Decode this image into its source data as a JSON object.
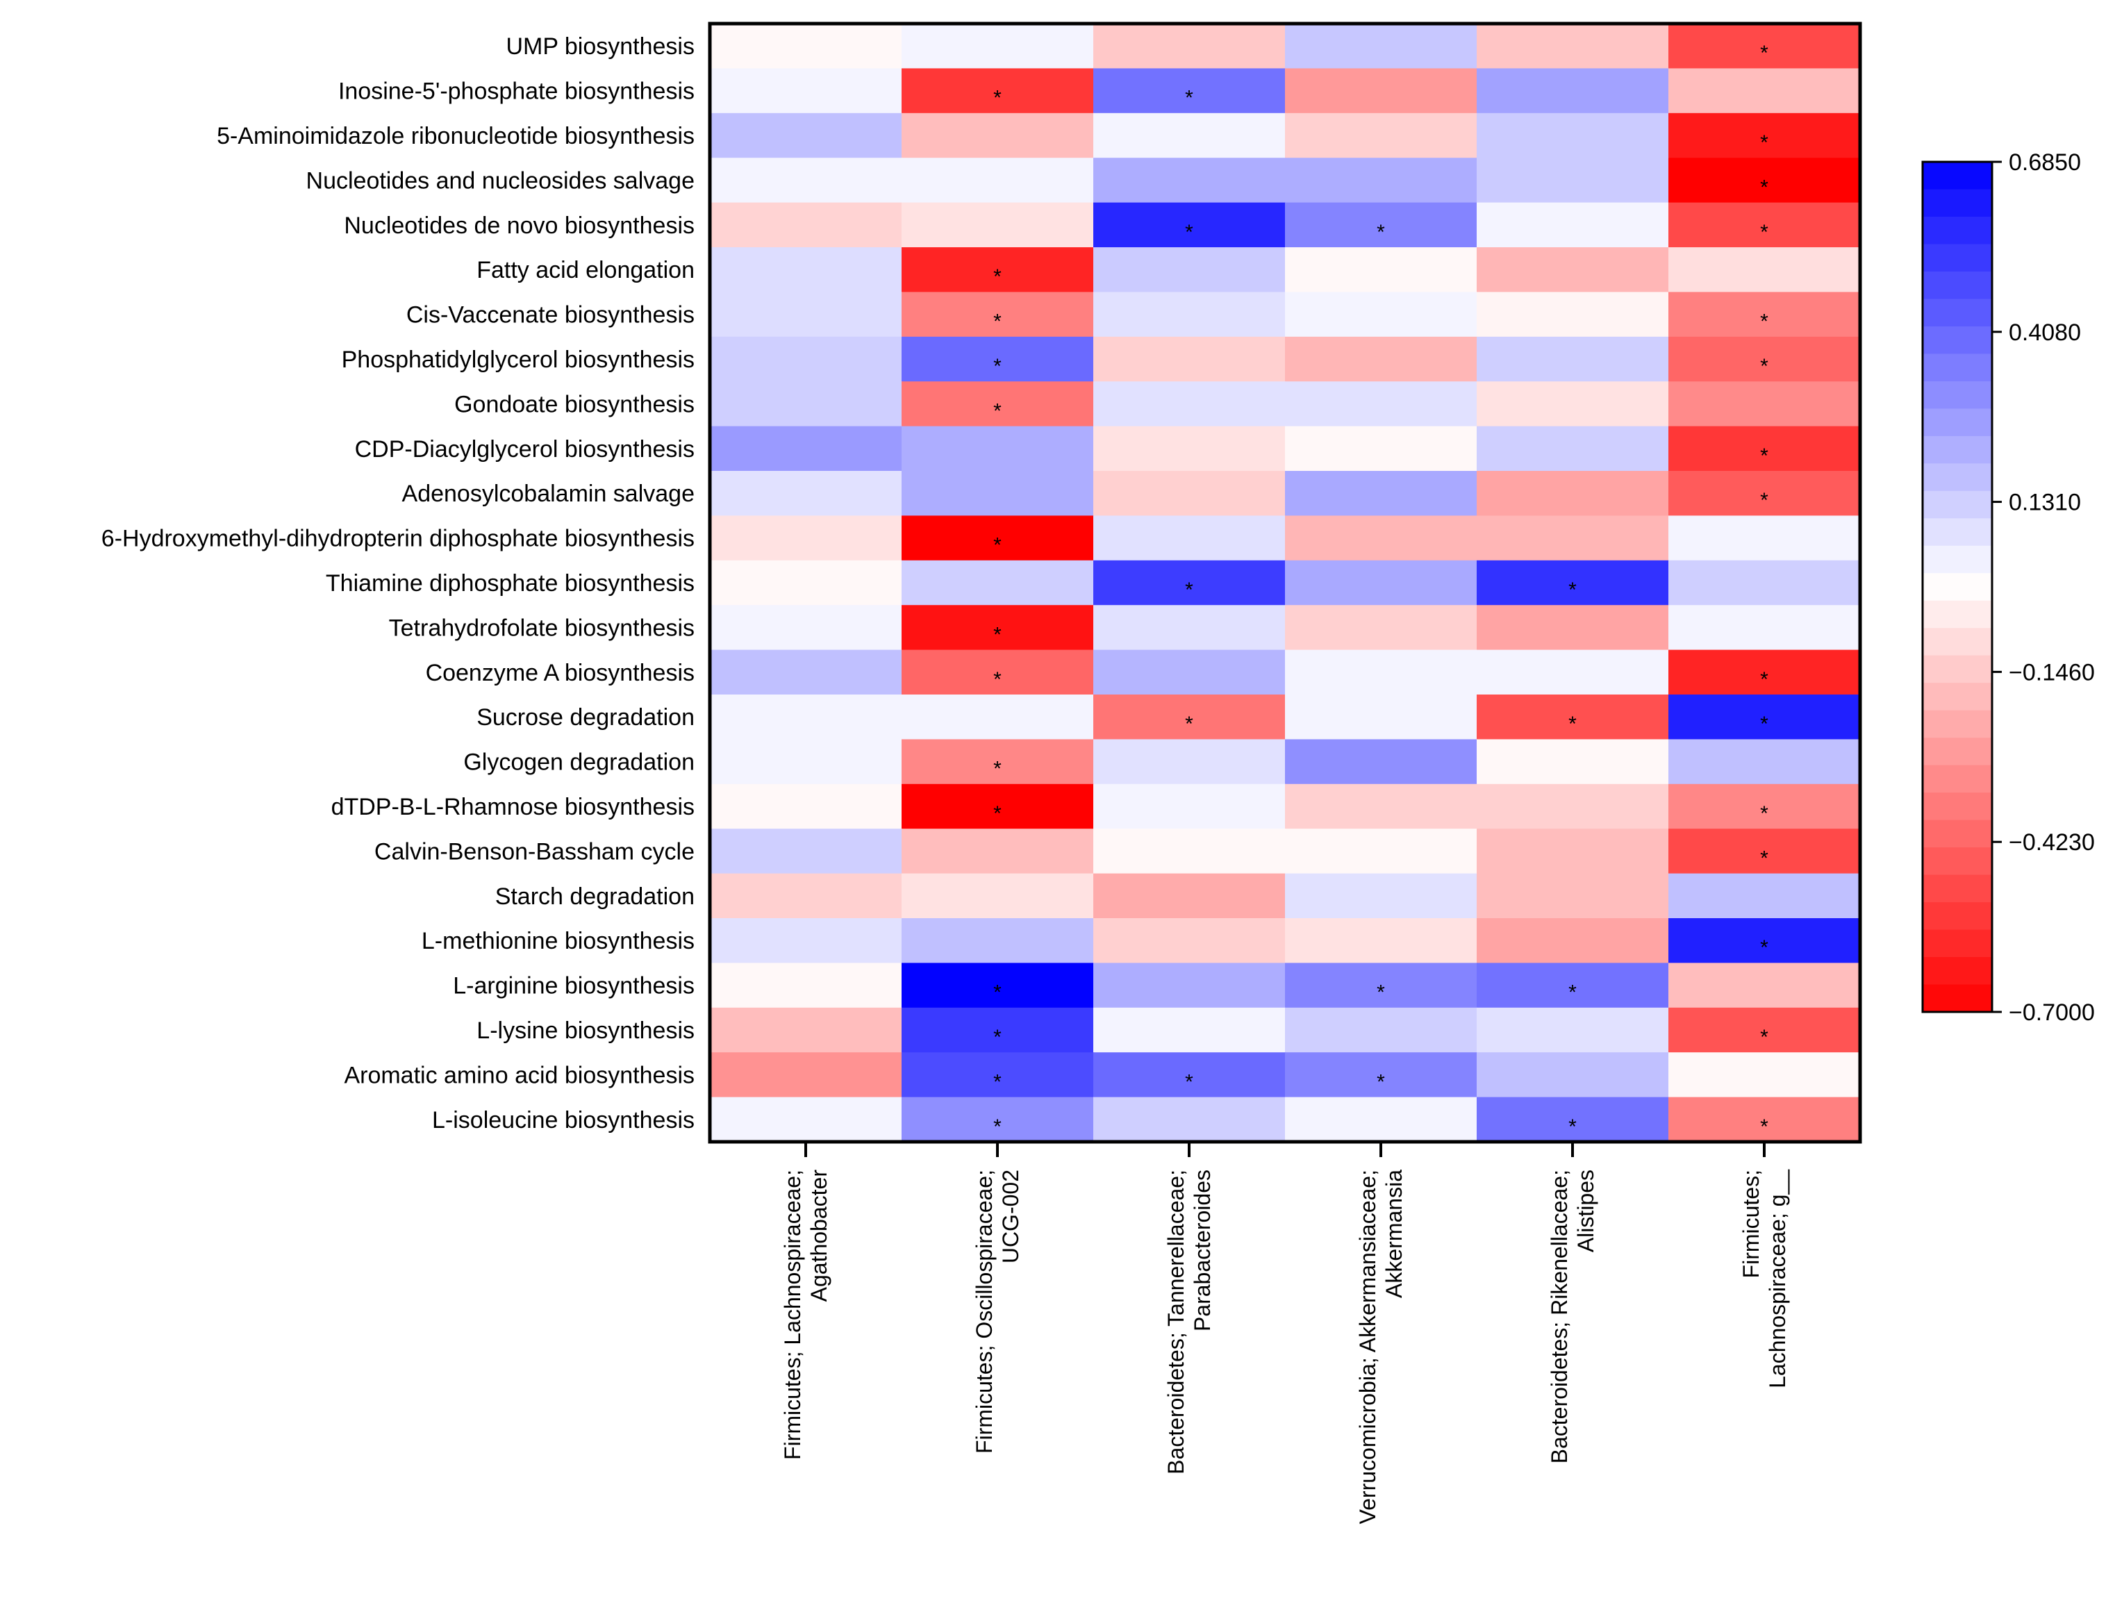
{
  "chart_data": {
    "type": "heatmap",
    "title": "",
    "significance_marker": "*",
    "rows": [
      "UMP biosynthesis",
      "Inosine-5'-phosphate biosynthesis",
      "5-Aminoimidazole ribonucleotide biosynthesis",
      "Nucleotides and nucleosides salvage",
      "Nucleotides de novo biosynthesis",
      "Fatty acid elongation",
      "Cis-Vaccenate biosynthesis",
      "Phosphatidylglycerol biosynthesis",
      "Gondoate biosynthesis",
      "CDP-Diacylglycerol biosynthesis",
      "Adenosylcobalamin salvage",
      "6-Hydroxymethyl-dihydropterin diphosphate biosynthesis",
      "Thiamine diphosphate biosynthesis",
      "Tetrahydrofolate biosynthesis",
      "Coenzyme A biosynthesis",
      "Sucrose degradation",
      "Glycogen degradation",
      "dTDP-B-L-Rhamnose biosynthesis",
      "Calvin-Benson-Bassham cycle",
      "Starch degradation",
      "L-methionine biosynthesis",
      "L-arginine biosynthesis",
      "L-lysine biosynthesis",
      "Aromatic amino acid biosynthesis",
      "L-isoleucine biosynthesis"
    ],
    "columns": [
      [
        "Firmicutes; Lachnospiraceae;",
        "Agathobacter"
      ],
      [
        "Firmicutes; Oscillospiraceae;",
        "UCG-002"
      ],
      [
        "Bacteroidetes; Tannerellaceae;",
        "Parabacteroides"
      ],
      [
        "Verrucomicrobia; Akkermansiaceae;",
        "Akkermansia"
      ],
      [
        "Bacteroidetes; Rikenellaceae;",
        "Alistipes"
      ],
      [
        "Firmicutes;",
        "Lachnospiraceae; g__"
      ]
    ],
    "values": [
      [
        -0.02,
        0.03,
        -0.15,
        0.15,
        -0.16,
        -0.5
      ],
      [
        0.03,
        -0.55,
        0.38,
        -0.28,
        0.25,
        -0.18
      ],
      [
        0.17,
        -0.18,
        0.03,
        -0.13,
        0.14,
        -0.63
      ],
      [
        0.03,
        0.03,
        0.22,
        0.22,
        0.14,
        -0.7
      ],
      [
        -0.12,
        -0.08,
        0.58,
        0.33,
        0.03,
        -0.5
      ],
      [
        0.09,
        -0.6,
        0.14,
        -0.02,
        -0.2,
        -0.09
      ],
      [
        0.09,
        -0.35,
        0.08,
        0.03,
        -0.03,
        -0.35
      ],
      [
        0.13,
        0.4,
        -0.13,
        -0.2,
        0.13,
        -0.42
      ],
      [
        0.13,
        -0.38,
        0.08,
        0.08,
        -0.08,
        -0.32
      ],
      [
        0.27,
        0.22,
        -0.08,
        -0.02,
        0.13,
        -0.55
      ],
      [
        0.08,
        0.22,
        -0.13,
        0.23,
        -0.25,
        -0.45
      ],
      [
        -0.08,
        -0.7,
        0.08,
        -0.2,
        -0.2,
        0.03
      ],
      [
        -0.02,
        0.13,
        0.52,
        0.23,
        0.55,
        0.13
      ],
      [
        0.03,
        -0.65,
        0.08,
        -0.13,
        -0.25,
        0.03
      ],
      [
        0.17,
        -0.42,
        0.2,
        0.03,
        0.03,
        -0.6
      ],
      [
        0.03,
        0.03,
        -0.38,
        0.03,
        -0.48,
        0.6
      ],
      [
        0.03,
        -0.33,
        0.08,
        0.3,
        -0.02,
        0.17
      ],
      [
        -0.02,
        -0.7,
        0.03,
        -0.13,
        -0.13,
        -0.33
      ],
      [
        0.13,
        -0.18,
        -0.02,
        -0.02,
        -0.18,
        -0.5
      ],
      [
        -0.13,
        -0.08,
        -0.23,
        0.08,
        -0.18,
        0.17
      ],
      [
        0.08,
        0.17,
        -0.13,
        -0.08,
        -0.25,
        0.6
      ],
      [
        -0.02,
        0.68,
        0.22,
        0.33,
        0.38,
        -0.18
      ],
      [
        -0.18,
        0.53,
        0.03,
        0.13,
        0.08,
        -0.47
      ],
      [
        -0.3,
        0.48,
        0.4,
        0.33,
        0.17,
        -0.02
      ],
      [
        0.03,
        0.3,
        0.13,
        0.03,
        0.38,
        -0.35
      ]
    ],
    "significant": [
      [
        0,
        0,
        0,
        0,
        0,
        1
      ],
      [
        0,
        1,
        1,
        0,
        0,
        0
      ],
      [
        0,
        0,
        0,
        0,
        0,
        1
      ],
      [
        0,
        0,
        0,
        0,
        0,
        1
      ],
      [
        0,
        0,
        1,
        1,
        0,
        1
      ],
      [
        0,
        1,
        0,
        0,
        0,
        0
      ],
      [
        0,
        1,
        0,
        0,
        0,
        1
      ],
      [
        0,
        1,
        0,
        0,
        0,
        1
      ],
      [
        0,
        1,
        0,
        0,
        0,
        0
      ],
      [
        0,
        0,
        0,
        0,
        0,
        1
      ],
      [
        0,
        0,
        0,
        0,
        0,
        1
      ],
      [
        0,
        1,
        0,
        0,
        0,
        0
      ],
      [
        0,
        0,
        1,
        0,
        1,
        0
      ],
      [
        0,
        1,
        0,
        0,
        0,
        0
      ],
      [
        0,
        1,
        0,
        0,
        0,
        1
      ],
      [
        0,
        0,
        1,
        0,
        1,
        1
      ],
      [
        0,
        1,
        0,
        0,
        0,
        0
      ],
      [
        0,
        1,
        0,
        0,
        0,
        1
      ],
      [
        0,
        0,
        0,
        0,
        0,
        1
      ],
      [
        0,
        0,
        0,
        0,
        0,
        0
      ],
      [
        0,
        0,
        0,
        0,
        0,
        1
      ],
      [
        0,
        1,
        0,
        1,
        1,
        0
      ],
      [
        0,
        1,
        0,
        0,
        0,
        1
      ],
      [
        0,
        1,
        1,
        1,
        0,
        0
      ],
      [
        0,
        1,
        0,
        0,
        1,
        1
      ]
    ],
    "colorbar": {
      "min": -0.7,
      "max": 0.685,
      "ticks": [
        0.685,
        0.408,
        0.131,
        -0.146,
        -0.423,
        -0.7
      ],
      "tick_labels": [
        "0.6850",
        "0.4080",
        "0.1310",
        "−0.1460",
        "−0.4230",
        "−0.7000"
      ],
      "low_color": "#ff0000",
      "mid_color": "#ffffff",
      "high_color": "#0000ff"
    }
  }
}
